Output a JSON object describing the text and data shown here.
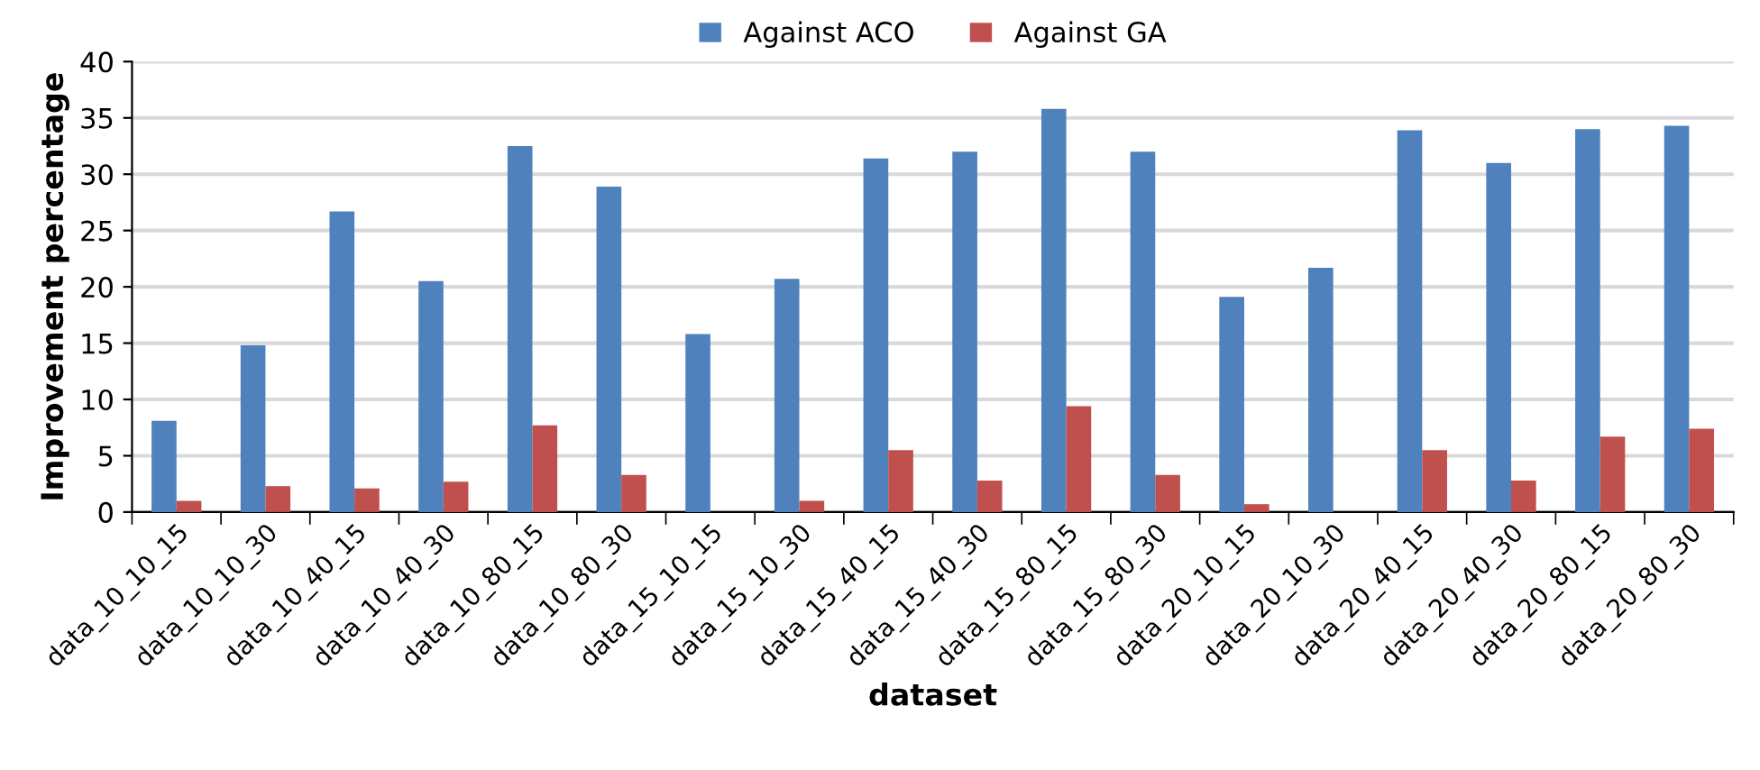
{
  "chart_data": {
    "type": "bar",
    "xlabel": "dataset",
    "ylabel": "Improvement percentage",
    "categories": [
      "data_10_10_15",
      "data_10_10_30",
      "data_10_40_15",
      "data_10_40_30",
      "data_10_80_15",
      "data_10_80_30",
      "data_15_10_15",
      "data_15_10_30",
      "data_15_40_15",
      "data_15_40_30",
      "data_15_80_15",
      "data_15_80_30",
      "data_20_10_15",
      "data_20_10_30",
      "data_20_40_15",
      "data_20_40_30",
      "data_20_80_15",
      "data_20_80_30"
    ],
    "series": [
      {
        "name": "Against ACO",
        "color": "#4f81bd",
        "values": [
          8.1,
          14.8,
          26.7,
          20.5,
          32.5,
          28.9,
          15.8,
          20.7,
          31.4,
          32.0,
          35.8,
          32.0,
          19.1,
          21.7,
          33.9,
          31.0,
          34.0,
          34.3
        ]
      },
      {
        "name": "Against GA",
        "color": "#c0504d",
        "values": [
          1.0,
          2.3,
          2.1,
          2.7,
          7.7,
          3.3,
          0,
          1.0,
          5.5,
          2.8,
          9.4,
          3.3,
          0.7,
          0,
          5.5,
          2.8,
          6.7,
          7.4
        ]
      }
    ],
    "ylim": [
      0,
      40
    ],
    "yticks": [
      0,
      5,
      10,
      15,
      20,
      25,
      30,
      35,
      40
    ],
    "grid": "y",
    "legend": "top"
  }
}
